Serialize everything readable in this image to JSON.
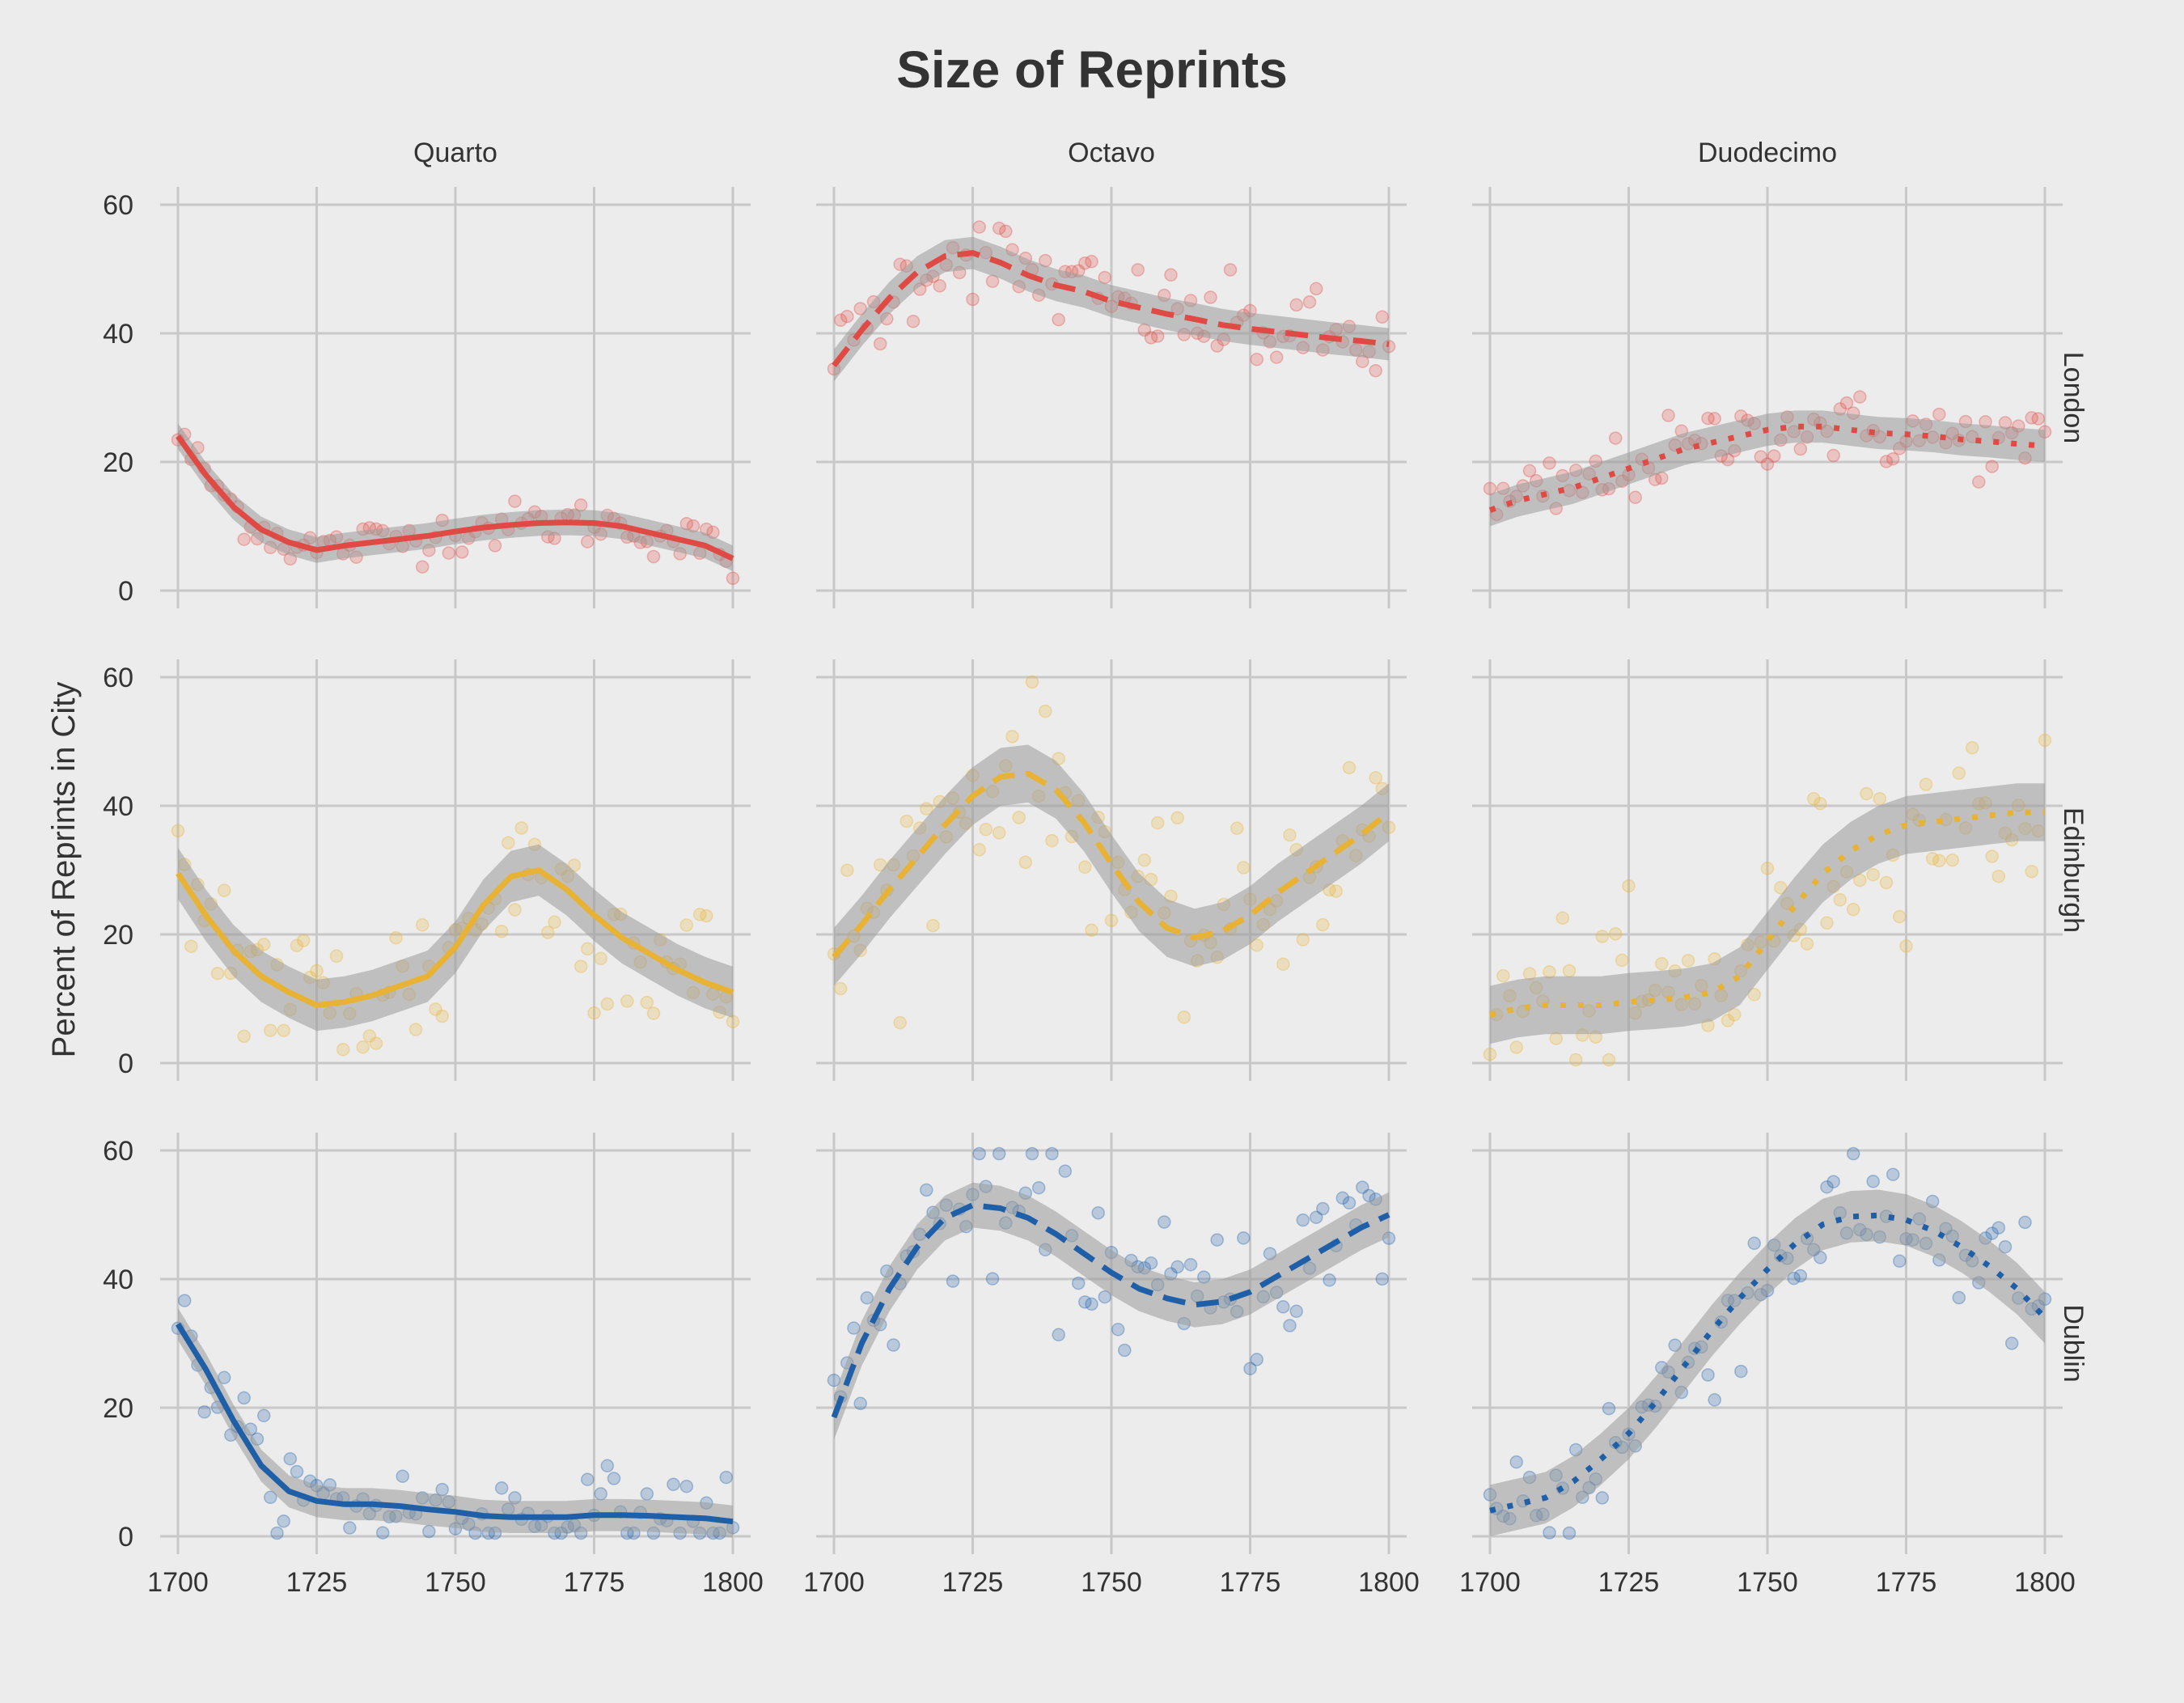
{
  "chart_data": {
    "type": "scatter",
    "title": "Size of Reprints",
    "ylabel": "Percent of Reprints in City",
    "xlim": [
      1700,
      1800
    ],
    "ylim": [
      0,
      60
    ],
    "x_ticks": [
      1700,
      1725,
      1750,
      1775,
      1800
    ],
    "y_ticks": [
      0,
      20,
      40,
      60
    ],
    "grid": true,
    "columns": [
      "Quarto",
      "Octavo",
      "Duodecimo"
    ],
    "rows": [
      "London",
      "Edinburgh",
      "Dublin"
    ],
    "colors": {
      "London": "#e04a44",
      "Edinburgh": "#e8b234",
      "Dublin": "#1f5fa8",
      "ribbon": "#9a9a9a"
    },
    "line_styles": {
      "Quarto": "solid",
      "Octavo": "dashed",
      "Duodecimo": "dotted"
    },
    "smooth_x": [
      1700,
      1705,
      1710,
      1715,
      1720,
      1725,
      1730,
      1735,
      1740,
      1745,
      1750,
      1755,
      1760,
      1765,
      1770,
      1775,
      1780,
      1785,
      1790,
      1795,
      1800
    ],
    "smooth_lines": {
      "London": {
        "Quarto": [
          24,
          18,
          13,
          9.5,
          7.5,
          6.3,
          7,
          7.5,
          8,
          8.5,
          9.2,
          9.8,
          10.2,
          10.5,
          10.6,
          10.5,
          10,
          9,
          8,
          7,
          5
        ],
        "Octavo": [
          35,
          40.5,
          45.5,
          49.5,
          52,
          52.5,
          51,
          49,
          47.5,
          46.5,
          45,
          44,
          43,
          42.2,
          41.3,
          40.7,
          40.2,
          39.7,
          39.2,
          38.8,
          38.3
        ],
        "Duodecimo": [
          12.5,
          14,
          15,
          16,
          17.5,
          19,
          20.5,
          22,
          23,
          24,
          25,
          25.5,
          25.5,
          25,
          24.5,
          24.3,
          24,
          23.5,
          23.2,
          22.8,
          22.5
        ]
      },
      "Edinburgh": {
        "Quarto": [
          29.5,
          23,
          17.5,
          13.5,
          11,
          9,
          9.5,
          10.5,
          12,
          13.5,
          18,
          24.5,
          29,
          30,
          27,
          23,
          19.5,
          17,
          14.5,
          12.5,
          11
        ],
        "Octavo": [
          16.5,
          21.5,
          27,
          32,
          37,
          41.5,
          44.5,
          45,
          42.5,
          37.5,
          31,
          25,
          21,
          19.5,
          20.5,
          23,
          26.5,
          29.5,
          32.5,
          35.5,
          39
        ],
        "Duodecimo": [
          7.5,
          8.5,
          9,
          9,
          9,
          9.5,
          9.8,
          10.2,
          11,
          13.5,
          19,
          24.5,
          29.5,
          33,
          35.5,
          37,
          37.5,
          38,
          38.5,
          39,
          39
        ]
      },
      "Dublin": {
        "Quarto": [
          33,
          26,
          18,
          11,
          7,
          5.5,
          5,
          5,
          4.7,
          4.2,
          3.8,
          3.2,
          3,
          3,
          3,
          3.3,
          3.3,
          3.2,
          3,
          2.8,
          2.3
        ],
        "Octavo": [
          18.5,
          30,
          38.5,
          45,
          49.5,
          51.5,
          51,
          49.5,
          47,
          44,
          41,
          38.5,
          37,
          36,
          36.5,
          38,
          40.5,
          43,
          45.5,
          48,
          50
        ],
        "Duodecimo": [
          4,
          5,
          6,
          8.5,
          12,
          16,
          21,
          26.5,
          32,
          37,
          41.5,
          45.5,
          48.5,
          49.7,
          49.9,
          49.2,
          47.5,
          45,
          42,
          38.5,
          34
        ]
      }
    },
    "ribbon_half_width": {
      "London": {
        "Quarto": 2,
        "Octavo": 2.5,
        "Duodecimo": 2.5
      },
      "Edinburgh": {
        "Quarto": 4,
        "Octavo": 4.5,
        "Duodecimo": 4.5
      },
      "Dublin": {
        "Quarto": 2.5,
        "Octavo": 3.5,
        "Duodecimo": 4
      }
    },
    "scatter_noise_sd": {
      "London": {
        "Quarto": 1.8,
        "Octavo": 3.5,
        "Duodecimo": 2.8
      },
      "Edinburgh": {
        "Quarto": 7,
        "Octavo": 6.5,
        "Duodecimo": 6.5
      },
      "Dublin": {
        "Quarto": 3.5,
        "Octavo": 6,
        "Duodecimo": 5.5
      }
    }
  }
}
